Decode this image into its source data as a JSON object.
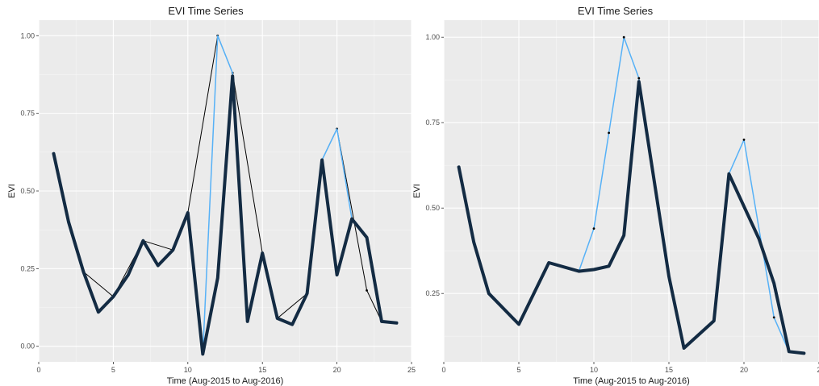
{
  "chart_data": [
    {
      "type": "line",
      "title": "EVI Time Series",
      "xlabel": "Time (Aug-2015 to Aug-2016)",
      "ylabel": "EVI",
      "xlim": [
        0,
        25
      ],
      "ylim": [
        -0.05,
        1.05
      ],
      "xticks": [
        0,
        5,
        10,
        15,
        20,
        25
      ],
      "yticks": [
        0.0,
        0.25,
        0.5,
        0.75,
        1.0
      ],
      "ytick_labels": [
        "0.00",
        "0.25",
        "0.50",
        "0.75",
        "1.00"
      ],
      "grid": true,
      "series": [
        {
          "color": "#000000",
          "width": 1,
          "points": true,
          "x": [
            1,
            2,
            3,
            5,
            7,
            9,
            10,
            12,
            13,
            15,
            16,
            18,
            19,
            20,
            22,
            23,
            24
          ],
          "y": [
            0.62,
            0.4,
            0.24,
            0.16,
            0.34,
            0.31,
            0.43,
            1.0,
            0.88,
            0.3,
            0.09,
            0.17,
            0.6,
            0.7,
            0.18,
            0.08,
            0.075
          ]
        },
        {
          "color": "#56b1f7",
          "width": 1.5,
          "x": [
            1,
            2,
            3,
            4,
            5,
            6,
            7,
            8,
            9,
            10,
            11,
            12,
            13,
            14,
            15,
            16,
            17,
            18,
            19,
            20,
            21,
            22,
            23,
            24
          ],
          "y": [
            0.62,
            0.4,
            0.24,
            0.11,
            0.16,
            0.23,
            0.34,
            0.26,
            0.31,
            0.43,
            -0.025,
            1.0,
            0.88,
            0.08,
            0.3,
            0.09,
            0.07,
            0.17,
            0.6,
            0.7,
            0.41,
            0.35,
            0.08,
            0.075
          ]
        },
        {
          "color": "#132b43",
          "width": 4,
          "x": [
            1,
            2,
            3,
            4,
            5,
            6,
            7,
            8,
            9,
            10,
            11,
            12,
            13,
            14,
            15,
            16,
            17,
            18,
            19,
            20,
            21,
            22,
            23,
            24
          ],
          "y": [
            0.62,
            0.4,
            0.24,
            0.11,
            0.16,
            0.23,
            0.34,
            0.26,
            0.31,
            0.43,
            -0.025,
            0.22,
            0.87,
            0.08,
            0.3,
            0.09,
            0.07,
            0.17,
            0.6,
            0.23,
            0.41,
            0.35,
            0.08,
            0.075
          ]
        }
      ]
    },
    {
      "type": "line",
      "title": "EVI Time Series",
      "xlabel": "Time (Aug-2015 to Aug-2016)",
      "ylabel": "EVI",
      "xlim": [
        0,
        25
      ],
      "ylim": [
        0.05,
        1.05
      ],
      "xticks": [
        0,
        5,
        10,
        15,
        20,
        25
      ],
      "yticks": [
        0.25,
        0.5,
        0.75,
        1.0
      ],
      "ytick_labels": [
        "0.25",
        "0.50",
        "0.75",
        "1.00"
      ],
      "xtick_labels_visible": [
        "0",
        "5",
        "10",
        "15",
        "20",
        "2"
      ],
      "grid": true,
      "series": [
        {
          "color": "#56b1f7",
          "width": 1.5,
          "points": true,
          "x": [
            1,
            2,
            3,
            5,
            7,
            9,
            10,
            11,
            12,
            13,
            15,
            16,
            18,
            19,
            20,
            22,
            23,
            24
          ],
          "y": [
            0.62,
            0.4,
            0.25,
            0.16,
            0.34,
            0.315,
            0.44,
            0.72,
            1.0,
            0.88,
            0.3,
            0.09,
            0.17,
            0.6,
            0.7,
            0.18,
            0.08,
            0.075
          ]
        },
        {
          "color": "#132b43",
          "width": 4,
          "x": [
            1,
            2,
            3,
            5,
            7,
            9,
            10,
            11,
            12,
            13,
            15,
            16,
            18,
            19,
            21,
            22,
            23,
            24
          ],
          "y": [
            0.62,
            0.4,
            0.25,
            0.16,
            0.34,
            0.315,
            0.32,
            0.33,
            0.42,
            0.87,
            0.3,
            0.09,
            0.17,
            0.6,
            0.41,
            0.28,
            0.08,
            0.075
          ]
        }
      ]
    }
  ]
}
